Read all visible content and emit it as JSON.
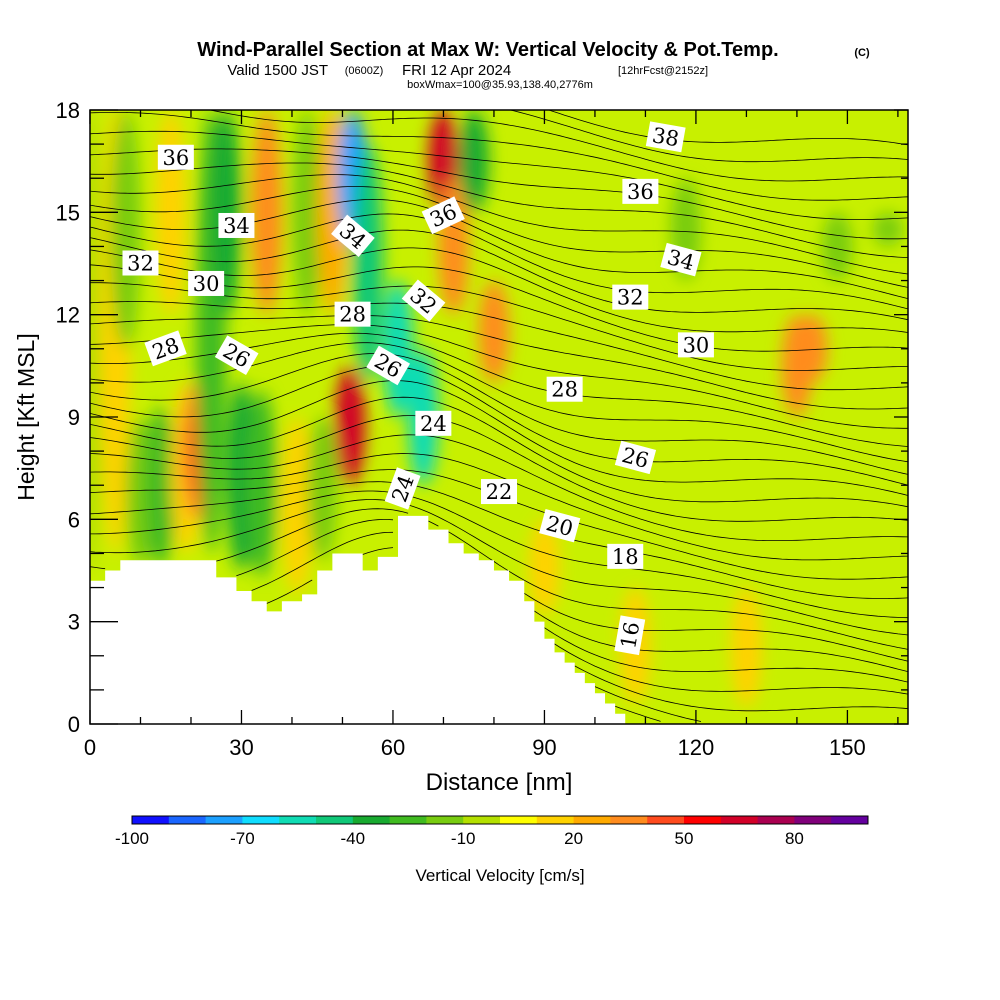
{
  "chart_data": {
    "type": "heatmap",
    "title": "Wind-Parallel Section at Max W: Vertical Velocity & Pot.Temp.",
    "title_mark": "(C)",
    "subtitle": {
      "valid": "Valid 1500 JST",
      "z": "(0600Z)",
      "date": "FRI 12 Apr 2024",
      "fcst": "[12hrFcst@2152z]"
    },
    "subtitle2": "boxWmax=100@35.93,138.40,2776m",
    "xlabel": "Distance [nm]",
    "ylabel": "Height [Kft MSL]",
    "xlim": [
      0,
      162
    ],
    "ylim": [
      0,
      18
    ],
    "x_ticks": [
      "0",
      "30",
      "60",
      "90",
      "120",
      "150"
    ],
    "x_tick_values": [
      0,
      30,
      60,
      90,
      120,
      150
    ],
    "y_ticks": [
      "0",
      "3",
      "6",
      "9",
      "12",
      "15",
      "18"
    ],
    "y_tick_values": [
      0,
      3,
      6,
      9,
      12,
      15,
      18
    ],
    "colorbar": {
      "label": "Vertical Velocity [cm/s]",
      "min": -100,
      "max": 100,
      "step": 10,
      "tick_labels": [
        "-100",
        "-70",
        "-40",
        "-10",
        "20",
        "50",
        "80"
      ],
      "tick_values": [
        -100,
        -70,
        -40,
        -10,
        20,
        50,
        80
      ],
      "colors": [
        "#1010ff",
        "#1a66ff",
        "#1ca0ff",
        "#10ddff",
        "#10dcb4",
        "#10c878",
        "#18aa30",
        "#40bb20",
        "#78cc10",
        "#b4e000",
        "#ffff00",
        "#ffd200",
        "#ffaa00",
        "#ff8c1e",
        "#ff4b1e",
        "#ff0000",
        "#d20028",
        "#aa0050",
        "#80007a",
        "#64009e"
      ]
    },
    "vertical_velocity_cells": [
      {
        "x": 0,
        "y0": 4.5,
        "y1": 18,
        "v": -5
      },
      {
        "x": 5,
        "y0": 5,
        "y1": 18,
        "v": 12
      },
      {
        "x": 7,
        "y0": 11,
        "y1": 18,
        "v": -15
      },
      {
        "x": 10,
        "y0": 4.6,
        "y1": 9,
        "v": -12
      },
      {
        "x": 14,
        "y0": 4.6,
        "y1": 9.3,
        "v": -25
      },
      {
        "x": 16,
        "y0": 12,
        "y1": 18,
        "v": 15
      },
      {
        "x": 19,
        "y0": 5,
        "y1": 10,
        "v": 15
      },
      {
        "x": 21,
        "y0": 6,
        "y1": 10,
        "v": 32
      },
      {
        "x": 22.5,
        "y0": 6.5,
        "y1": 9.5,
        "v": 48
      },
      {
        "x": 24,
        "y0": 5,
        "y1": 18,
        "v": -25
      },
      {
        "x": 27,
        "y0": 12,
        "y1": 18,
        "v": -40
      },
      {
        "x": 30,
        "y0": 4.5,
        "y1": 10,
        "v": -40
      },
      {
        "x": 34,
        "y0": 4.3,
        "y1": 9.8,
        "v": -30
      },
      {
        "x": 35,
        "y0": 12,
        "y1": 18,
        "v": 30
      },
      {
        "x": 41,
        "y0": 3.8,
        "y1": 9,
        "v": 15
      },
      {
        "x": 43,
        "y0": 12,
        "y1": 18,
        "v": -20
      },
      {
        "x": 46,
        "y0": 4.8,
        "y1": 9,
        "v": -20
      },
      {
        "x": 48,
        "y0": 12,
        "y1": 18,
        "v": 28
      },
      {
        "x": 51.5,
        "y0": 7,
        "y1": 10.5,
        "v": 62
      },
      {
        "x": 52,
        "y0": 14,
        "y1": 18,
        "v": -75
      },
      {
        "x": 55,
        "y0": 10,
        "y1": 17,
        "v": -50
      },
      {
        "x": 61,
        "y0": 9,
        "y1": 13,
        "v": -55
      },
      {
        "x": 66,
        "y0": 7,
        "y1": 11,
        "v": -60
      },
      {
        "x": 70,
        "y0": 15,
        "y1": 18,
        "v": 65
      },
      {
        "x": 72,
        "y0": 12,
        "y1": 16,
        "v": 35
      },
      {
        "x": 76,
        "y0": 15,
        "y1": 18,
        "v": -35
      },
      {
        "x": 80,
        "y0": 10,
        "y1": 13,
        "v": 30
      },
      {
        "x": 90,
        "y0": 3.2,
        "y1": 6,
        "v": 14
      },
      {
        "x": 108,
        "y0": 0.6,
        "y1": 4,
        "v": 14
      },
      {
        "x": 118,
        "y0": 13,
        "y1": 16,
        "v": -18
      },
      {
        "x": 130,
        "y0": 0.5,
        "y1": 4,
        "v": 14
      },
      {
        "x": 140,
        "y0": 9,
        "y1": 12,
        "v": 30
      },
      {
        "x": 143,
        "y0": 10,
        "y1": 12,
        "v": 38
      },
      {
        "x": 148,
        "y0": 13,
        "y1": 15,
        "v": -15
      },
      {
        "x": 158,
        "y0": 14,
        "y1": 15,
        "v": -15
      }
    ],
    "potential_temperature_labels": [
      {
        "text": "38",
        "x": 114,
        "y": 17.2,
        "angle": 10
      },
      {
        "text": "36",
        "x": 17,
        "y": 16.6,
        "angle": 0
      },
      {
        "text": "36",
        "x": 109,
        "y": 15.6,
        "angle": 0
      },
      {
        "text": "36",
        "x": 70,
        "y": 14.9,
        "angle": -25
      },
      {
        "text": "34",
        "x": 29,
        "y": 14.6,
        "angle": 0
      },
      {
        "text": "34",
        "x": 52,
        "y": 14.3,
        "angle": 40
      },
      {
        "text": "34",
        "x": 117,
        "y": 13.6,
        "angle": 15
      },
      {
        "text": "32",
        "x": 10,
        "y": 13.5,
        "angle": 0
      },
      {
        "text": "32",
        "x": 66,
        "y": 12.4,
        "angle": 40
      },
      {
        "text": "32",
        "x": 107,
        "y": 12.5,
        "angle": 0
      },
      {
        "text": "30",
        "x": 23,
        "y": 12.9,
        "angle": 0
      },
      {
        "text": "30",
        "x": 120,
        "y": 11.1,
        "angle": 0
      },
      {
        "text": "28",
        "x": 15,
        "y": 11.0,
        "angle": -20
      },
      {
        "text": "28",
        "x": 52,
        "y": 12.0,
        "angle": 0
      },
      {
        "text": "28",
        "x": 94,
        "y": 9.8,
        "angle": 0
      },
      {
        "text": "26",
        "x": 29,
        "y": 10.8,
        "angle": 30
      },
      {
        "text": "26",
        "x": 59,
        "y": 10.5,
        "angle": 30
      },
      {
        "text": "26",
        "x": 108,
        "y": 7.8,
        "angle": 15
      },
      {
        "text": "24",
        "x": 68,
        "y": 8.8,
        "angle": 0
      },
      {
        "text": "24",
        "x": 62,
        "y": 6.9,
        "angle": -70
      },
      {
        "text": "22",
        "x": 81,
        "y": 6.8,
        "angle": 0
      },
      {
        "text": "20",
        "x": 93,
        "y": 5.8,
        "angle": 15
      },
      {
        "text": "18",
        "x": 106,
        "y": 4.9,
        "angle": 0
      },
      {
        "text": "16",
        "x": 107,
        "y": 2.6,
        "angle": -80
      }
    ],
    "terrain_profile": [
      [
        0,
        4.2
      ],
      [
        3,
        4.2
      ],
      [
        3,
        4.5
      ],
      [
        6,
        4.5
      ],
      [
        6,
        4.8
      ],
      [
        25,
        4.8
      ],
      [
        25,
        4.3
      ],
      [
        29,
        4.3
      ],
      [
        29,
        3.9
      ],
      [
        32,
        3.9
      ],
      [
        32,
        3.6
      ],
      [
        35,
        3.6
      ],
      [
        35,
        3.3
      ],
      [
        38,
        3.3
      ],
      [
        38,
        3.6
      ],
      [
        42,
        3.6
      ],
      [
        42,
        3.8
      ],
      [
        45,
        3.8
      ],
      [
        45,
        4.5
      ],
      [
        48,
        4.5
      ],
      [
        48,
        5.0
      ],
      [
        54,
        5.0
      ],
      [
        54,
        4.5
      ],
      [
        57,
        4.5
      ],
      [
        57,
        4.9
      ],
      [
        61,
        4.9
      ],
      [
        61,
        6.1
      ],
      [
        67,
        6.1
      ],
      [
        67,
        5.7
      ],
      [
        71,
        5.7
      ],
      [
        71,
        5.3
      ],
      [
        74,
        5.3
      ],
      [
        74,
        5.0
      ],
      [
        77,
        5.0
      ],
      [
        77,
        4.8
      ],
      [
        80,
        4.8
      ],
      [
        80,
        4.5
      ],
      [
        83,
        4.5
      ],
      [
        83,
        4.2
      ],
      [
        86,
        4.2
      ],
      [
        86,
        3.6
      ],
      [
        88,
        3.6
      ],
      [
        88,
        3.0
      ],
      [
        90,
        3.0
      ],
      [
        90,
        2.5
      ],
      [
        92,
        2.5
      ],
      [
        92,
        2.1
      ],
      [
        94,
        2.1
      ],
      [
        94,
        1.8
      ],
      [
        96,
        1.8
      ],
      [
        96,
        1.5
      ],
      [
        98,
        1.5
      ],
      [
        98,
        1.2
      ],
      [
        100,
        1.2
      ],
      [
        100,
        0.9
      ],
      [
        102,
        0.9
      ],
      [
        102,
        0.6
      ],
      [
        104,
        0.6
      ],
      [
        104,
        0.3
      ],
      [
        106,
        0.3
      ]
    ]
  }
}
